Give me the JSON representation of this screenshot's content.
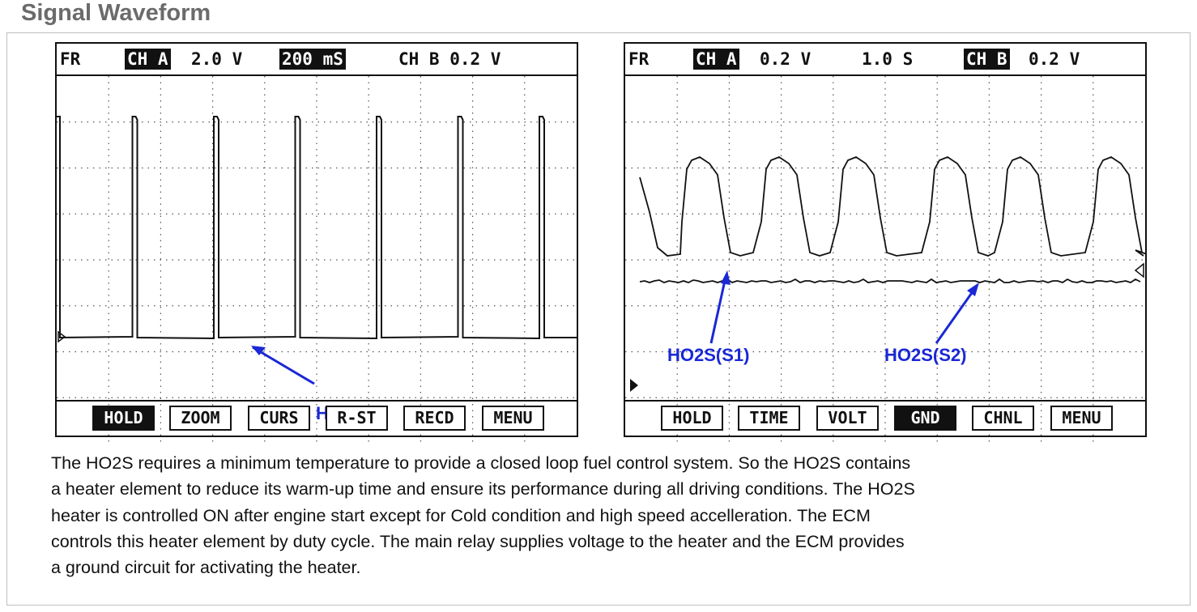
{
  "page": {
    "title": "Signal Waveform",
    "description_lines": [
      "The HO2S requires a minimum temperature to provide a closed loop fuel control system. So the HO2S contains",
      "a heater element to reduce its warm-up time and ensure its performance during all driving conditions.  The HO2S",
      "heater is controlled ON after engine start except for Cold condition and high speed accelleration. The ECM",
      "controls this heater element by duty cycle.  The main relay supplies voltage to the heater and the ECM provides",
      "a ground circuit for activating the heater."
    ]
  },
  "left_scope": {
    "header": {
      "mode": "FR",
      "ch_a": "CH A",
      "ch_a_scale": "2.0 V",
      "timebase": "200 mS",
      "ch_b": "CH B 0.2 V"
    },
    "annotation": "Heater",
    "buttons": [
      "HOLD",
      "ZOOM",
      "CURS",
      "R-ST",
      "RECD",
      "MENU"
    ],
    "active_button": "HOLD",
    "wave_color": "#111111",
    "annotation_color": "#1a28d6"
  },
  "right_scope": {
    "header": {
      "mode": "FR",
      "ch_a": "CH A",
      "ch_a_scale": "0.2 V",
      "timebase": "1.0 S",
      "ch_b": "CH B",
      "ch_b_scale": "0.2 V"
    },
    "annotations": [
      "HO2S(S1)",
      "HO2S(S2)"
    ],
    "buttons": [
      "HOLD",
      "TIME",
      "VOLT",
      "GND",
      "CHNL",
      "MENU"
    ],
    "active_button": "GND",
    "wave_color": "#111111",
    "annotation_color": "#1a28d6"
  }
}
